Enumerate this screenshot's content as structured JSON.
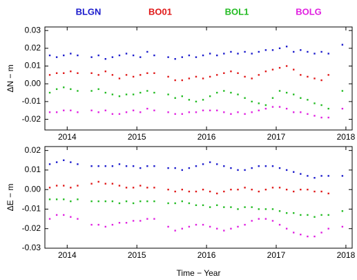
{
  "chart_data": [
    {
      "type": "scatter",
      "ylabel": "ΔN − m",
      "x": [
        2013.75,
        2013.85,
        2013.95,
        2014.05,
        2014.15,
        2014.25,
        2014.35,
        2014.45,
        2014.55,
        2014.65,
        2014.75,
        2014.85,
        2014.95,
        2015.05,
        2015.15,
        2015.25,
        2015.35,
        2015.45,
        2015.55,
        2015.65,
        2015.75,
        2015.85,
        2015.95,
        2016.05,
        2016.15,
        2016.25,
        2016.35,
        2016.45,
        2016.55,
        2016.65,
        2016.75,
        2016.85,
        2016.95,
        2017.05,
        2017.15,
        2017.25,
        2017.35,
        2017.45,
        2017.55,
        2017.65,
        2017.75,
        2017.85,
        2017.95
      ],
      "xlim": [
        2013.68,
        2018.09
      ],
      "xticks": [
        2014,
        2015,
        2016,
        2017,
        2018
      ],
      "ylim": [
        -0.026,
        0.032
      ],
      "yticks": [
        {
          "value": -0.02,
          "label": "-0.02"
        },
        {
          "value": -0.01,
          "label": "-0.01"
        },
        {
          "value": 0,
          "label": "0.00"
        },
        0.01,
        0.02,
        0.03
      ],
      "series": [
        {
          "name": "BLGN",
          "color": "#1a1acc",
          "values": [
            0.016,
            0.015,
            0.016,
            0.017,
            0.016,
            null,
            0.015,
            0.016,
            0.014,
            0.015,
            0.016,
            0.017,
            0.016,
            0.015,
            0.018,
            0.016,
            null,
            0.015,
            0.014,
            0.015,
            0.016,
            0.015,
            0.016,
            0.017,
            0.016,
            0.017,
            0.018,
            0.017,
            0.018,
            0.017,
            0.018,
            0.019,
            0.019,
            0.02,
            0.021,
            0.018,
            0.019,
            0.018,
            0.017,
            0.018,
            0.017,
            null,
            0.022
          ]
        },
        {
          "name": "BO01",
          "color": "#e01818",
          "values": [
            0.005,
            0.006,
            0.006,
            0.007,
            0.006,
            null,
            0.006,
            0.005,
            0.007,
            0.005,
            0.003,
            0.005,
            0.004,
            0.005,
            0.006,
            0.006,
            null,
            0.004,
            0.002,
            0.002,
            0.003,
            0.004,
            0.003,
            0.004,
            0.005,
            0.006,
            0.007,
            0.006,
            0.004,
            0.003,
            0.005,
            0.007,
            0.008,
            0.009,
            0.01,
            0.008,
            0.005,
            0.004,
            0.003,
            0.002,
            0.005,
            null,
            null
          ]
        },
        {
          "name": "BOL1",
          "color": "#22bb22",
          "values": [
            -0.005,
            -0.003,
            -0.002,
            -0.003,
            -0.004,
            null,
            -0.004,
            -0.003,
            -0.005,
            -0.006,
            -0.007,
            -0.006,
            -0.006,
            -0.005,
            -0.004,
            -0.005,
            null,
            -0.006,
            -0.008,
            -0.007,
            -0.009,
            -0.01,
            -0.009,
            -0.007,
            -0.005,
            -0.004,
            -0.005,
            -0.006,
            -0.008,
            -0.01,
            -0.011,
            -0.012,
            -0.008,
            -0.004,
            -0.005,
            -0.006,
            -0.008,
            -0.009,
            -0.011,
            -0.012,
            -0.014,
            null,
            -0.004
          ]
        },
        {
          "name": "BOLG",
          "color": "#e020e0",
          "values": [
            -0.016,
            -0.016,
            -0.015,
            -0.015,
            -0.016,
            null,
            -0.015,
            -0.016,
            -0.015,
            -0.017,
            -0.017,
            -0.016,
            -0.015,
            -0.016,
            -0.014,
            -0.015,
            null,
            -0.016,
            -0.017,
            -0.017,
            -0.016,
            -0.016,
            -0.015,
            -0.015,
            -0.015,
            -0.016,
            -0.017,
            -0.016,
            -0.017,
            -0.016,
            -0.015,
            -0.014,
            -0.013,
            -0.013,
            -0.014,
            -0.016,
            -0.016,
            -0.017,
            -0.018,
            -0.019,
            -0.019,
            null,
            -0.014
          ]
        }
      ]
    },
    {
      "type": "scatter",
      "ylabel": "ΔE − m",
      "xlabel": "Time − Year",
      "x": [
        2013.75,
        2013.85,
        2013.95,
        2014.05,
        2014.15,
        2014.25,
        2014.35,
        2014.45,
        2014.55,
        2014.65,
        2014.75,
        2014.85,
        2014.95,
        2015.05,
        2015.15,
        2015.25,
        2015.35,
        2015.45,
        2015.55,
        2015.65,
        2015.75,
        2015.85,
        2015.95,
        2016.05,
        2016.15,
        2016.25,
        2016.35,
        2016.45,
        2016.55,
        2016.65,
        2016.75,
        2016.85,
        2016.95,
        2017.05,
        2017.15,
        2017.25,
        2017.35,
        2017.45,
        2017.55,
        2017.65,
        2017.75,
        2017.85,
        2017.95
      ],
      "xlim": [
        2013.68,
        2018.09
      ],
      "xticks": [
        2014,
        2015,
        2016,
        2017,
        2018
      ],
      "ylim": [
        -0.03,
        0.022
      ],
      "yticks": [
        {
          "value": -0.03,
          "label": "-0.03"
        },
        {
          "value": -0.02,
          "label": "-0.02"
        },
        {
          "value": -0.01,
          "label": "-0.01"
        },
        {
          "value": 0,
          "label": "0.00"
        },
        0.01,
        0.02
      ],
      "series": [
        {
          "color": "#1a1acc",
          "values": [
            0.013,
            0.014,
            0.015,
            0.014,
            0.013,
            null,
            0.012,
            0.012,
            0.012,
            0.012,
            0.013,
            0.012,
            0.012,
            0.011,
            0.012,
            0.012,
            null,
            0.011,
            0.011,
            0.01,
            0.011,
            0.012,
            0.013,
            0.014,
            0.013,
            0.012,
            0.011,
            0.01,
            0.01,
            0.011,
            0.012,
            0.012,
            0.012,
            0.011,
            0.01,
            0.009,
            0.008,
            0.007,
            0.006,
            0.007,
            0.007,
            null,
            0.007
          ]
        },
        {
          "color": "#e01818",
          "values": [
            0.001,
            0.002,
            0.002,
            0.001,
            0.002,
            null,
            0.003,
            0.004,
            0.003,
            0.003,
            0.002,
            0.001,
            0.001,
            0.002,
            0.001,
            0.001,
            null,
            0,
            -0.001,
            0,
            -0.001,
            -0.001,
            0,
            -0.001,
            -0.002,
            -0.001,
            0,
            0,
            0.001,
            0,
            -0.001,
            0,
            0.001,
            0.001,
            0,
            -0.001,
            0,
            0,
            -0.001,
            -0.001,
            -0.002,
            null,
            null
          ]
        },
        {
          "color": "#22bb22",
          "values": [
            -0.005,
            -0.005,
            -0.005,
            -0.006,
            -0.005,
            null,
            -0.006,
            -0.006,
            -0.006,
            -0.006,
            -0.007,
            -0.006,
            -0.007,
            -0.006,
            -0.006,
            -0.006,
            null,
            -0.007,
            -0.007,
            -0.006,
            -0.007,
            -0.008,
            -0.008,
            -0.009,
            -0.008,
            -0.009,
            -0.009,
            -0.01,
            -0.009,
            -0.009,
            -0.01,
            -0.01,
            -0.01,
            -0.011,
            -0.012,
            -0.012,
            -0.013,
            -0.013,
            -0.014,
            -0.013,
            -0.013,
            null,
            -0.011
          ]
        },
        {
          "color": "#e020e0",
          "values": [
            -0.015,
            -0.013,
            -0.013,
            -0.014,
            -0.015,
            null,
            -0.018,
            -0.018,
            -0.019,
            -0.018,
            -0.017,
            -0.017,
            -0.016,
            -0.016,
            -0.015,
            -0.015,
            null,
            -0.019,
            -0.021,
            -0.02,
            -0.019,
            -0.018,
            -0.018,
            -0.019,
            -0.02,
            -0.021,
            -0.02,
            -0.019,
            -0.018,
            -0.016,
            -0.015,
            -0.015,
            -0.016,
            -0.018,
            -0.02,
            -0.022,
            -0.023,
            -0.024,
            -0.024,
            -0.022,
            -0.02,
            null,
            -0.019
          ]
        }
      ]
    }
  ]
}
